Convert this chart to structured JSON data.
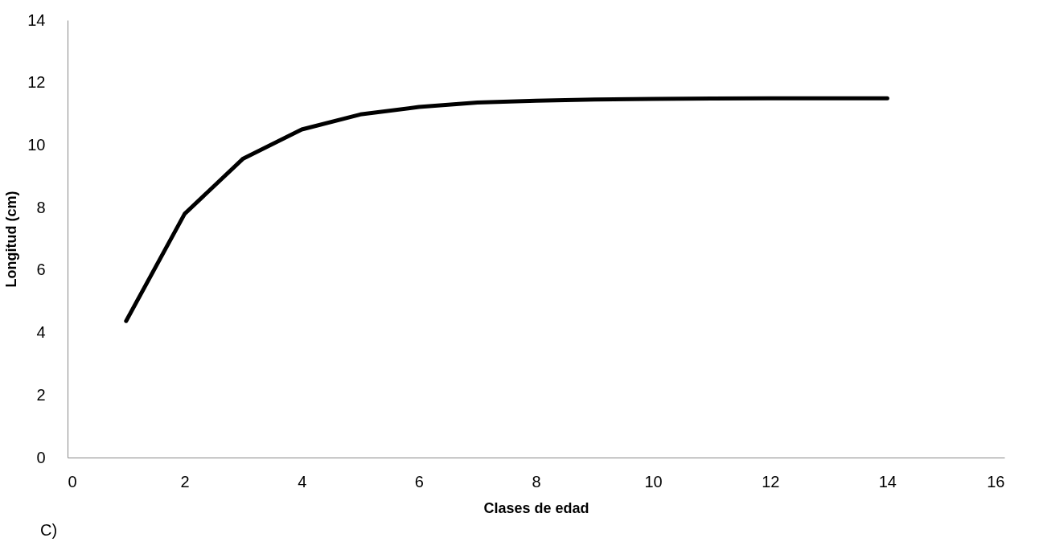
{
  "chart_data": {
    "type": "line",
    "xlabel": "Clases de edad",
    "ylabel": "Longitud (cm)",
    "annotations": [
      "C)"
    ],
    "x": [
      1,
      2,
      3,
      4,
      5,
      6,
      7,
      8,
      9,
      10,
      11,
      12,
      13,
      14
    ],
    "series": [
      {
        "color": "#000000",
        "values": [
          4.37,
          7.8,
          9.57,
          10.5,
          10.98,
          11.22,
          11.36,
          11.42,
          11.46,
          11.48,
          11.49,
          11.5,
          11.5,
          11.5
        ]
      }
    ],
    "xlim": [
      0,
      16
    ],
    "xticks": [
      0,
      2,
      4,
      6,
      8,
      10,
      12,
      14,
      16
    ],
    "ylim": [
      0,
      14
    ],
    "yticks": [
      0,
      2,
      4,
      6,
      8,
      10,
      12,
      14
    ],
    "grid": false,
    "legend": false,
    "marker": "none",
    "line_style": "solid"
  }
}
